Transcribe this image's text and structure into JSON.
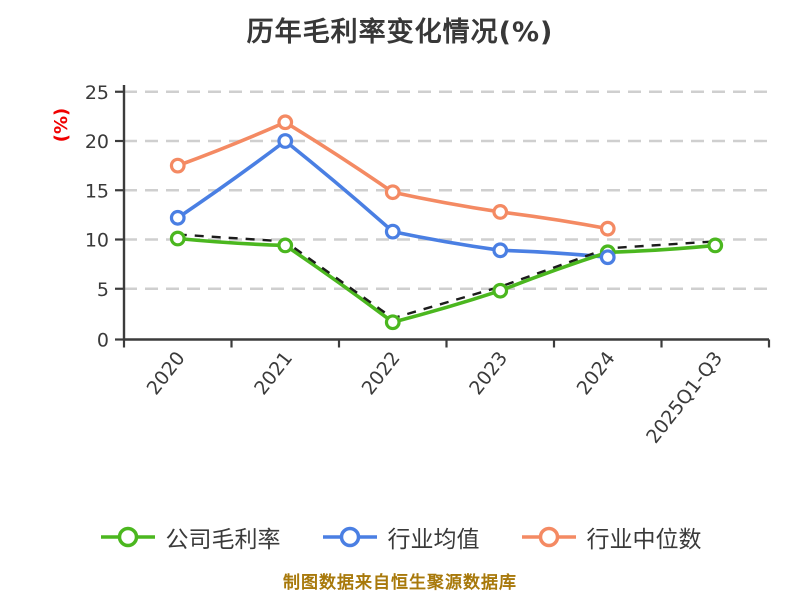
{
  "title": "历年毛利率变化情况(%)",
  "y_axis_label": "(%)",
  "footer": "制图数据来自恒生聚源数据库",
  "colors": {
    "company": "#4bb71f",
    "industry_avg": "#4a7fe3",
    "industry_median": "#f48a63",
    "axis_text": "#3a3a3a",
    "grid": "#cfcfcf",
    "spine": "#3c3c3c",
    "ylabel_red": "#f00000",
    "footer_gold": "#a8790b",
    "overlay_dash": "#1c1c1c",
    "marker_fill": "#ffffff"
  },
  "legend": [
    {
      "label": "公司毛利率",
      "color_key": "company"
    },
    {
      "label": "行业均值",
      "color_key": "industry_avg"
    },
    {
      "label": "行业中位数",
      "color_key": "industry_median"
    }
  ],
  "chart_data": {
    "type": "line",
    "title": "历年毛利率变化情况(%)",
    "ylabel": "(%)",
    "xlabel": "",
    "categories": [
      "2020",
      "2021",
      "2022",
      "2023",
      "2024",
      "2025Q1-Q3"
    ],
    "series": [
      {
        "name": "公司毛利率",
        "color_key": "company",
        "values": [
          10.1,
          9.4,
          1.6,
          4.8,
          8.7,
          9.4
        ],
        "marker": "open-circle",
        "overlay": "black-dashed"
      },
      {
        "name": "行业均值",
        "color_key": "industry_avg",
        "values": [
          12.2,
          20.0,
          10.8,
          8.9,
          8.2,
          null
        ],
        "marker": "open-circle"
      },
      {
        "name": "行业中位数",
        "color_key": "industry_median",
        "values": [
          17.5,
          21.9,
          14.8,
          12.8,
          11.1,
          null
        ],
        "marker": "open-circle"
      }
    ],
    "ylim": [
      0,
      25
    ],
    "yticks": [
      0,
      5,
      10,
      15,
      20,
      25
    ],
    "grid": "horizontal-dashed",
    "legend_position": "bottom",
    "style": "hand-drawn-sketch",
    "x_tick_label_rotation": -52
  }
}
